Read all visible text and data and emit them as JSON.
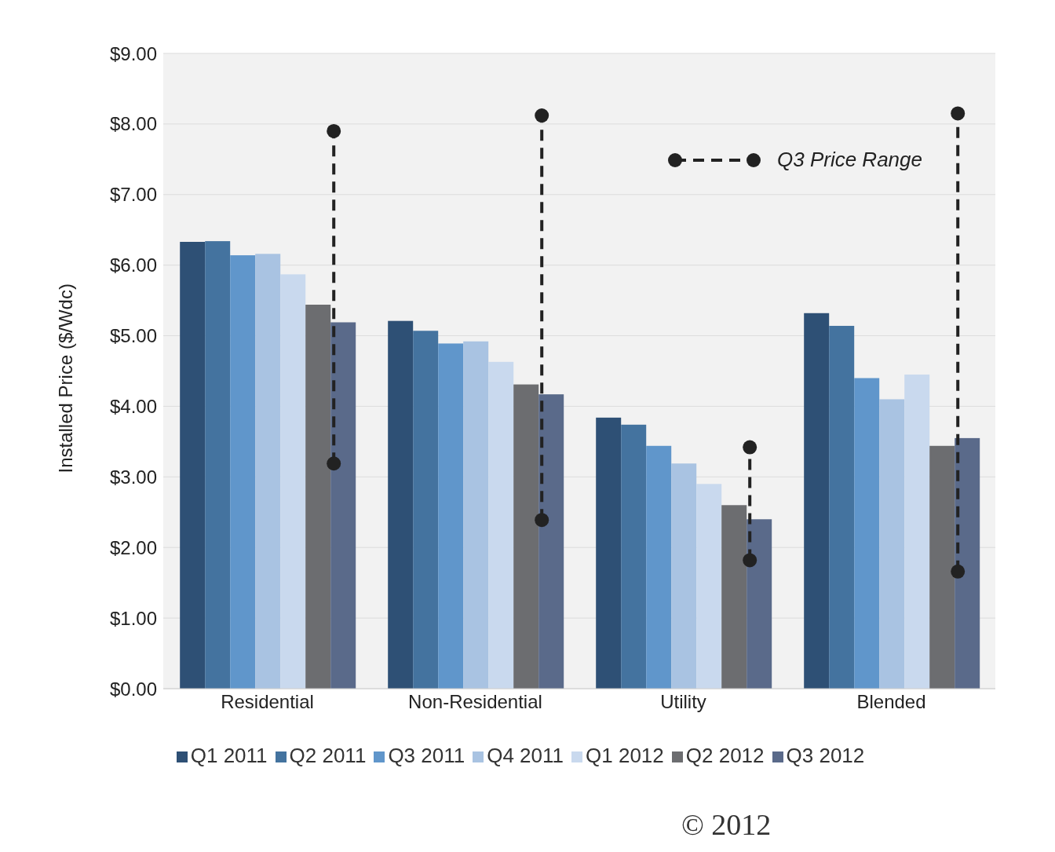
{
  "chart_data": {
    "type": "bar",
    "ylabel": "Installed Price ($/Wdc)",
    "categories": [
      "Residential",
      "Non-Residential",
      "Utility",
      "Blended"
    ],
    "series": [
      {
        "name": "Q1 2011",
        "color": "#2e5075",
        "values": [
          6.33,
          5.21,
          3.84,
          5.32
        ]
      },
      {
        "name": "Q2 2011",
        "color": "#44739f",
        "values": [
          6.34,
          5.07,
          3.74,
          5.14
        ]
      },
      {
        "name": "Q3 2011",
        "color": "#6096cb",
        "values": [
          6.14,
          4.89,
          3.44,
          4.4
        ]
      },
      {
        "name": "Q4 2011",
        "color": "#a9c3e2",
        "values": [
          6.16,
          4.92,
          3.19,
          4.1
        ]
      },
      {
        "name": "Q1 2012",
        "color": "#c9d9ee",
        "values": [
          5.87,
          4.63,
          2.9,
          4.45
        ]
      },
      {
        "name": "Q2 2012",
        "color": "#6c6d70",
        "values": [
          5.44,
          4.31,
          2.6,
          3.44
        ]
      },
      {
        "name": "Q3 2012",
        "color": "#5a6a8a",
        "values": [
          5.19,
          4.17,
          2.4,
          3.55
        ]
      },
      {
        "name": "Q3 Price Range",
        "type": "line",
        "color": "#222222",
        "line_style": "dashed",
        "marker": "circle",
        "x": [
          "Residential",
          "Residential",
          "Residential",
          "Non-Residential",
          "Non-Residential",
          "Non-Residential",
          "Utility",
          "Utility",
          "Utility",
          "Blended",
          "Blended"
        ],
        "values": [
          3.19,
          7.9,
          null,
          2.39,
          8.12,
          null,
          1.82,
          3.42,
          null,
          1.66,
          8.15
        ]
      }
    ],
    "ylim": [
      0,
      9
    ],
    "yticks": [
      {
        "value": 0,
        "label": "$0.00"
      },
      {
        "value": 1,
        "label": "$1.00"
      },
      {
        "value": 2,
        "label": "$2.00"
      },
      {
        "value": 3,
        "label": "$3.00"
      },
      {
        "value": 4,
        "label": "$4.00"
      },
      {
        "value": 5,
        "label": "$5.00"
      },
      {
        "value": 6,
        "label": "$6.00"
      },
      {
        "value": 7,
        "label": "$7.00"
      },
      {
        "value": 8,
        "label": "$8.00"
      },
      {
        "value": 9,
        "label": "$9.00"
      }
    ],
    "grid": "y",
    "legend": "bottom",
    "annotations": [
      "© 2012"
    ]
  }
}
